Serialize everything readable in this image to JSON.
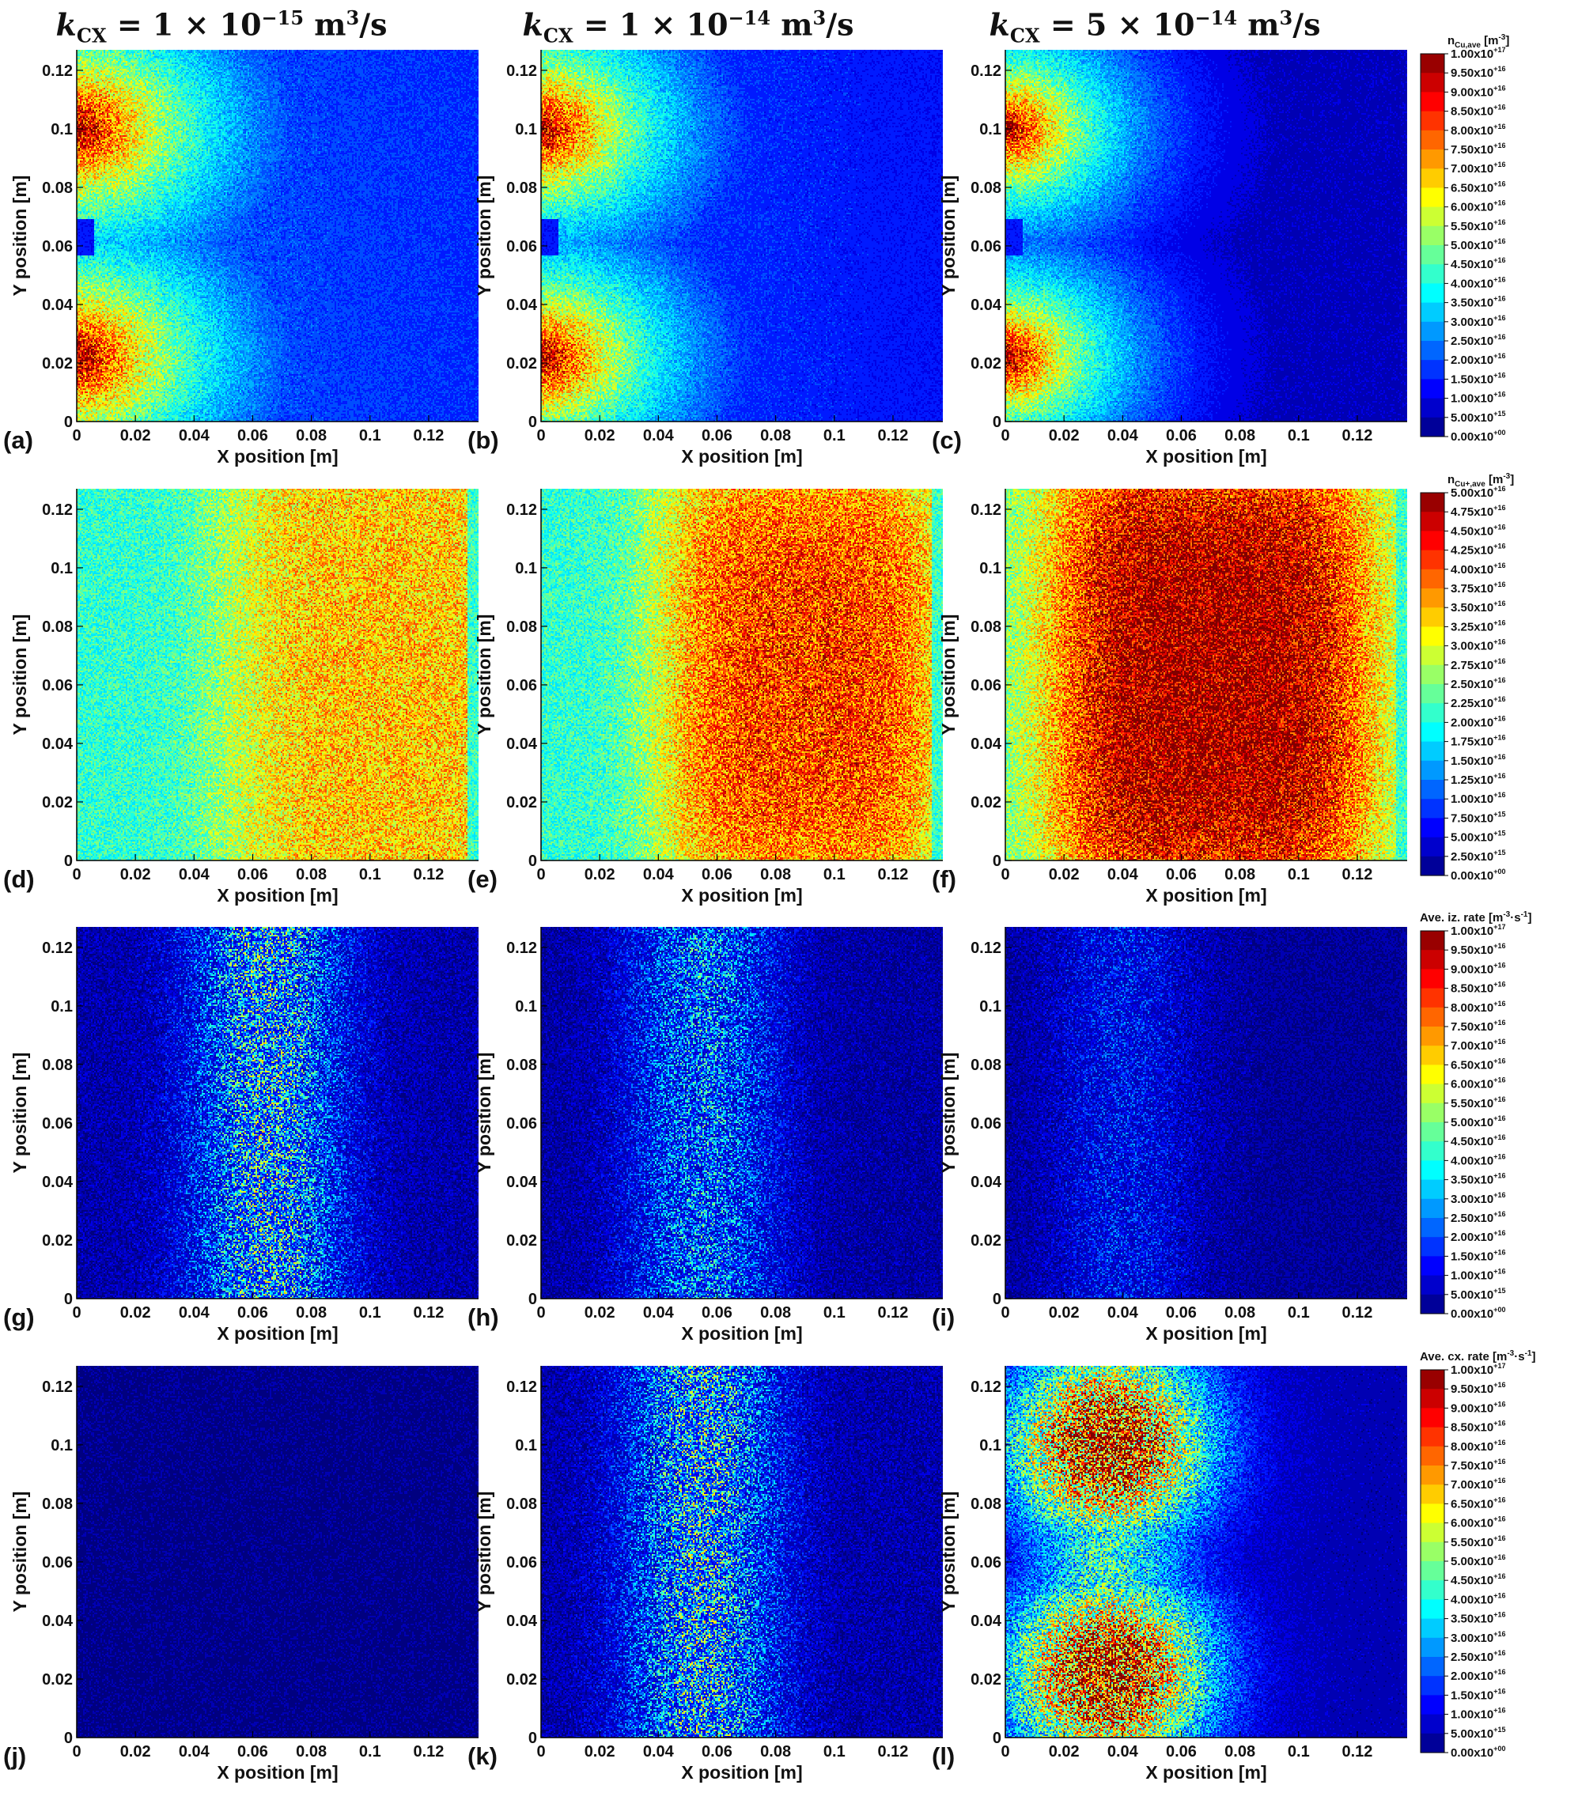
{
  "column_titles": [
    {
      "k": "k",
      "sub": "CX",
      "eq": " = 1 × 10",
      "exp": "−15",
      "unit": " m",
      "unit_exp": "3",
      "tail": "/s"
    },
    {
      "k": "k",
      "sub": "CX",
      "eq": " = 1 × 10",
      "exp": "−14",
      "unit": " m",
      "unit_exp": "3",
      "tail": "/s"
    },
    {
      "k": "k",
      "sub": "CX",
      "eq": " = 5 × 10",
      "exp": "−14",
      "unit": " m",
      "unit_exp": "3",
      "tail": "/s"
    }
  ],
  "colorbars": [
    {
      "title_main": "n",
      "title_sub": "Cu,ave",
      "title_unit": " [m",
      "title_unit_exp": "-3",
      "title_tail": "]",
      "labels": [
        "1.00x10^+17",
        "9.50x10^+16",
        "9.00x10^+16",
        "8.50x10^+16",
        "8.00x10^+16",
        "7.50x10^+16",
        "7.00x10^+16",
        "6.50x10^+16",
        "6.00x10^+16",
        "5.50x10^+16",
        "5.00x10^+16",
        "4.50x10^+16",
        "4.00x10^+16",
        "3.50x10^+16",
        "3.00x10^+16",
        "2.50x10^+16",
        "2.00x10^+16",
        "1.50x10^+16",
        "1.00x10^+16",
        "5.00x10^+15",
        "0.00x10^+00"
      ]
    },
    {
      "title_main": "n",
      "title_sub": "Cu+,ave",
      "title_unit": " [m",
      "title_unit_exp": "-3",
      "title_tail": "]",
      "labels": [
        "5.00x10^+16",
        "4.75x10^+16",
        "4.50x10^+16",
        "4.25x10^+16",
        "4.00x10^+16",
        "3.75x10^+16",
        "3.50x10^+16",
        "3.25x10^+16",
        "3.00x10^+16",
        "2.75x10^+16",
        "2.50x10^+16",
        "2.25x10^+16",
        "2.00x10^+16",
        "1.75x10^+16",
        "1.50x10^+16",
        "1.25x10^+16",
        "1.00x10^+16",
        "7.50x10^+15",
        "5.00x10^+15",
        "2.50x10^+15",
        "0.00x10^+00"
      ]
    },
    {
      "title_main": "Ave. iz. rate",
      "title_sub": "",
      "title_unit": "  [m",
      "title_unit_exp": "-3",
      "title_tail": "·s",
      "title_tail_exp": "-1",
      "title_end": "]",
      "labels": [
        "1.00x10^+17",
        "9.50x10^+16",
        "9.00x10^+16",
        "8.50x10^+16",
        "8.00x10^+16",
        "7.50x10^+16",
        "7.00x10^+16",
        "6.50x10^+16",
        "6.00x10^+16",
        "5.50x10^+16",
        "5.00x10^+16",
        "4.50x10^+16",
        "4.00x10^+16",
        "3.50x10^+16",
        "3.00x10^+16",
        "2.50x10^+16",
        "2.00x10^+16",
        "1.50x10^+16",
        "1.00x10^+16",
        "5.00x10^+15",
        "0.00x10^+00"
      ]
    },
    {
      "title_main": "Ave. cx. rate",
      "title_sub": "",
      "title_unit": "  [m",
      "title_unit_exp": "-3",
      "title_tail": "·s",
      "title_tail_exp": "-1",
      "title_end": "]",
      "labels": [
        "1.00x10^+17",
        "9.50x10^+16",
        "9.00x10^+16",
        "8.50x10^+16",
        "8.00x10^+16",
        "7.50x10^+16",
        "7.00x10^+16",
        "6.50x10^+16",
        "6.00x10^+16",
        "5.50x10^+16",
        "5.00x10^+16",
        "4.50x10^+16",
        "4.00x10^+16",
        "3.50x10^+16",
        "3.00x10^+16",
        "2.50x10^+16",
        "2.00x10^+16",
        "1.50x10^+16",
        "1.00x10^+16",
        "5.00x10^+15",
        "0.00x10^+00"
      ]
    }
  ],
  "colormap_20": [
    "#00007f",
    "#0000a8",
    "#0000d1",
    "#0000fa",
    "#0022ff",
    "#004aff",
    "#0072ff",
    "#009aff",
    "#00c2ff",
    "#0ee9f0",
    "#36ffc9",
    "#5eff a1",
    "#86ff79",
    "#aeff51",
    "#d6ff29",
    "#fde600",
    "#ffc000",
    "#ff9a00",
    "#ff7300",
    "#ff4d00",
    "#b00000"
  ],
  "chart_data": [
    {
      "type": "heatmap",
      "panel_label": "(a)",
      "xlabel": "X position [m]",
      "ylabel": "Y position [m]",
      "xlim": [
        0,
        0.137
      ],
      "ylim": [
        0,
        0.127
      ],
      "xticks": [
        "0",
        "0.02",
        "0.04",
        "0.06",
        "0.08",
        "0.1",
        "0.12"
      ],
      "yticks": [
        "0",
        "0.02",
        "0.04",
        "0.06",
        "0.08",
        "0.1",
        "0.12"
      ],
      "field": "n_Cu,ave",
      "colorbar_range": [
        0,
        1e+17
      ],
      "features": [
        {
          "kind": "source",
          "x": 0,
          "y": 0.1,
          "peak": 1e+17
        },
        {
          "kind": "source",
          "x": 0,
          "y": 0.022,
          "peak": 1e+17
        },
        {
          "kind": "background",
          "value": 2.3e+16
        }
      ]
    },
    {
      "type": "heatmap",
      "panel_label": "(b)",
      "xlabel": "X position [m]",
      "ylabel": "Y position [m]",
      "xlim": [
        0,
        0.137
      ],
      "ylim": [
        0,
        0.127
      ],
      "xticks": [
        "0",
        "0.02",
        "0.04",
        "0.06",
        "0.08",
        "0.1",
        "0.12"
      ],
      "yticks": [
        "0",
        "0.02",
        "0.04",
        "0.06",
        "0.08",
        "0.1",
        "0.12"
      ],
      "field": "n_Cu,ave",
      "colorbar_range": [
        0,
        1e+17
      ],
      "features": [
        {
          "kind": "source",
          "x": 0,
          "y": 0.1,
          "peak": 1e+17
        },
        {
          "kind": "source",
          "x": 0,
          "y": 0.022,
          "peak": 1e+17
        },
        {
          "kind": "background",
          "value": 1.9e+16
        }
      ]
    },
    {
      "type": "heatmap",
      "panel_label": "(c)",
      "xlabel": "X position [m]",
      "ylabel": "Y position [m]",
      "xlim": [
        0,
        0.137
      ],
      "ylim": [
        0,
        0.127
      ],
      "xticks": [
        "0",
        "0.02",
        "0.04",
        "0.06",
        "0.08",
        "0.1",
        "0.12"
      ],
      "yticks": [
        "0",
        "0.02",
        "0.04",
        "0.06",
        "0.08",
        "0.1",
        "0.12"
      ],
      "field": "n_Cu,ave",
      "colorbar_range": [
        0,
        1e+17
      ],
      "features": [
        {
          "kind": "source",
          "x": 0,
          "y": 0.1,
          "peak": 1e+17
        },
        {
          "kind": "source",
          "x": 0,
          "y": 0.022,
          "peak": 1e+17
        },
        {
          "kind": "background",
          "value": 1.2e+16
        }
      ]
    },
    {
      "type": "heatmap",
      "panel_label": "(d)",
      "xlabel": "X position [m]",
      "ylabel": "Y position [m]",
      "xlim": [
        0,
        0.137
      ],
      "ylim": [
        0,
        0.127
      ],
      "xticks": [
        "0",
        "0.02",
        "0.04",
        "0.06",
        "0.08",
        "0.1",
        "0.12"
      ],
      "yticks": [
        "0",
        "0.02",
        "0.04",
        "0.06",
        "0.08",
        "0.1",
        "0.12"
      ],
      "field": "n_Cu+,ave",
      "colorbar_range": [
        0,
        5e+16
      ],
      "features": [
        {
          "kind": "blob",
          "x": 0.105,
          "y": 0.063,
          "peak": 3.4e+16
        },
        {
          "kind": "background",
          "value": 2.1e+16
        }
      ]
    },
    {
      "type": "heatmap",
      "panel_label": "(e)",
      "xlabel": "X position [m]",
      "ylabel": "Y position [m]",
      "xlim": [
        0,
        0.137
      ],
      "ylim": [
        0,
        0.127
      ],
      "xticks": [
        "0",
        "0.02",
        "0.04",
        "0.06",
        "0.08",
        "0.1",
        "0.12"
      ],
      "yticks": [
        "0",
        "0.02",
        "0.04",
        "0.06",
        "0.08",
        "0.1",
        "0.12"
      ],
      "field": "n_Cu+,ave",
      "colorbar_range": [
        0,
        5e+16
      ],
      "features": [
        {
          "kind": "blob",
          "x": 0.09,
          "y": 0.063,
          "peak": 4.1e+16
        },
        {
          "kind": "background",
          "value": 2.1e+16
        }
      ]
    },
    {
      "type": "heatmap",
      "panel_label": "(f)",
      "xlabel": "X position [m]",
      "ylabel": "Y position [m]",
      "xlim": [
        0,
        0.137
      ],
      "ylim": [
        0,
        0.127
      ],
      "xticks": [
        "0",
        "0.02",
        "0.04",
        "0.06",
        "0.08",
        "0.1",
        "0.12"
      ],
      "yticks": [
        "0",
        "0.02",
        "0.04",
        "0.06",
        "0.08",
        "0.1",
        "0.12"
      ],
      "field": "n_Cu+,ave",
      "colorbar_range": [
        0,
        5e+16
      ],
      "features": [
        {
          "kind": "blob",
          "x": 0.07,
          "y": 0.063,
          "peak": 4.9e+16
        },
        {
          "kind": "background",
          "value": 2.3e+16
        }
      ]
    },
    {
      "type": "heatmap",
      "panel_label": "(g)",
      "xlabel": "X position [m]",
      "ylabel": "Y position [m]",
      "xlim": [
        0,
        0.137
      ],
      "ylim": [
        0,
        0.127
      ],
      "xticks": [
        "0",
        "0.02",
        "0.04",
        "0.06",
        "0.08",
        "0.1",
        "0.12"
      ],
      "yticks": [
        "0",
        "0.02",
        "0.04",
        "0.06",
        "0.08",
        "0.1",
        "0.12"
      ],
      "field": "Ave. iz. rate",
      "colorbar_range": [
        0,
        1e+17
      ],
      "features": [
        {
          "kind": "band",
          "x": 0.065,
          "y": 0.063,
          "peak": 4e+16
        },
        {
          "kind": "background",
          "value": 6000000000000000.0
        }
      ]
    },
    {
      "type": "heatmap",
      "panel_label": "(h)",
      "xlabel": "X position [m]",
      "ylabel": "Y position [m]",
      "xlim": [
        0,
        0.137
      ],
      "ylim": [
        0,
        0.127
      ],
      "xticks": [
        "0",
        "0.02",
        "0.04",
        "0.06",
        "0.08",
        "0.1",
        "0.12"
      ],
      "yticks": [
        "0",
        "0.02",
        "0.04",
        "0.06",
        "0.08",
        "0.1",
        "0.12"
      ],
      "field": "Ave. iz. rate",
      "colorbar_range": [
        0,
        1e+17
      ],
      "features": [
        {
          "kind": "band",
          "x": 0.055,
          "y": 0.063,
          "peak": 3e+16
        },
        {
          "kind": "background",
          "value": 5000000000000000.0
        }
      ]
    },
    {
      "type": "heatmap",
      "panel_label": "(i)",
      "xlabel": "X position [m]",
      "ylabel": "Y position [m]",
      "xlim": [
        0,
        0.137
      ],
      "ylim": [
        0,
        0.127
      ],
      "xticks": [
        "0",
        "0.02",
        "0.04",
        "0.06",
        "0.08",
        "0.1",
        "0.12"
      ],
      "yticks": [
        "0",
        "0.02",
        "0.04",
        "0.06",
        "0.08",
        "0.1",
        "0.12"
      ],
      "field": "Ave. iz. rate",
      "colorbar_range": [
        0,
        1e+17
      ],
      "features": [
        {
          "kind": "band",
          "x": 0.04,
          "y": 0.063,
          "peak": 1.6e+16
        },
        {
          "kind": "background",
          "value": 4000000000000000.0
        }
      ]
    },
    {
      "type": "heatmap",
      "panel_label": "(j)",
      "xlabel": "X position [m]",
      "ylabel": "Y position [m]",
      "xlim": [
        0,
        0.137
      ],
      "ylim": [
        0,
        0.127
      ],
      "xticks": [
        "0",
        "0.02",
        "0.04",
        "0.06",
        "0.08",
        "0.1",
        "0.12"
      ],
      "yticks": [
        "0",
        "0.02",
        "0.04",
        "0.06",
        "0.08",
        "0.1",
        "0.12"
      ],
      "field": "Ave. cx. rate",
      "colorbar_range": [
        0,
        1e+17
      ],
      "features": [
        {
          "kind": "background",
          "value": 3000000000000000.0
        }
      ]
    },
    {
      "type": "heatmap",
      "panel_label": "(k)",
      "xlabel": "X position [m]",
      "ylabel": "Y position [m]",
      "xlim": [
        0,
        0.137
      ],
      "ylim": [
        0,
        0.127
      ],
      "xticks": [
        "0",
        "0.02",
        "0.04",
        "0.06",
        "0.08",
        "0.1",
        "0.12"
      ],
      "yticks": [
        "0",
        "0.02",
        "0.04",
        "0.06",
        "0.08",
        "0.1",
        "0.12"
      ],
      "field": "Ave. cx. rate",
      "colorbar_range": [
        0,
        1e+17
      ],
      "features": [
        {
          "kind": "band",
          "x": 0.055,
          "y": 0.063,
          "peak": 4e+16
        },
        {
          "kind": "background",
          "value": 6000000000000000.0
        }
      ]
    },
    {
      "type": "heatmap",
      "panel_label": "(l)",
      "xlabel": "X position [m]",
      "ylabel": "Y position [m]",
      "xlim": [
        0,
        0.137
      ],
      "ylim": [
        0,
        0.127
      ],
      "xticks": [
        "0",
        "0.02",
        "0.04",
        "0.06",
        "0.08",
        "0.1",
        "0.12"
      ],
      "yticks": [
        "0",
        "0.02",
        "0.04",
        "0.06",
        "0.08",
        "0.1",
        "0.12"
      ],
      "field": "Ave. cx. rate",
      "colorbar_range": [
        0,
        1e+17
      ],
      "features": [
        {
          "kind": "source",
          "x": 0.035,
          "y": 0.1,
          "peak": 9e+16
        },
        {
          "kind": "source",
          "x": 0.035,
          "y": 0.022,
          "peak": 9e+16
        },
        {
          "kind": "background",
          "value": 5000000000000000.0
        }
      ]
    }
  ]
}
